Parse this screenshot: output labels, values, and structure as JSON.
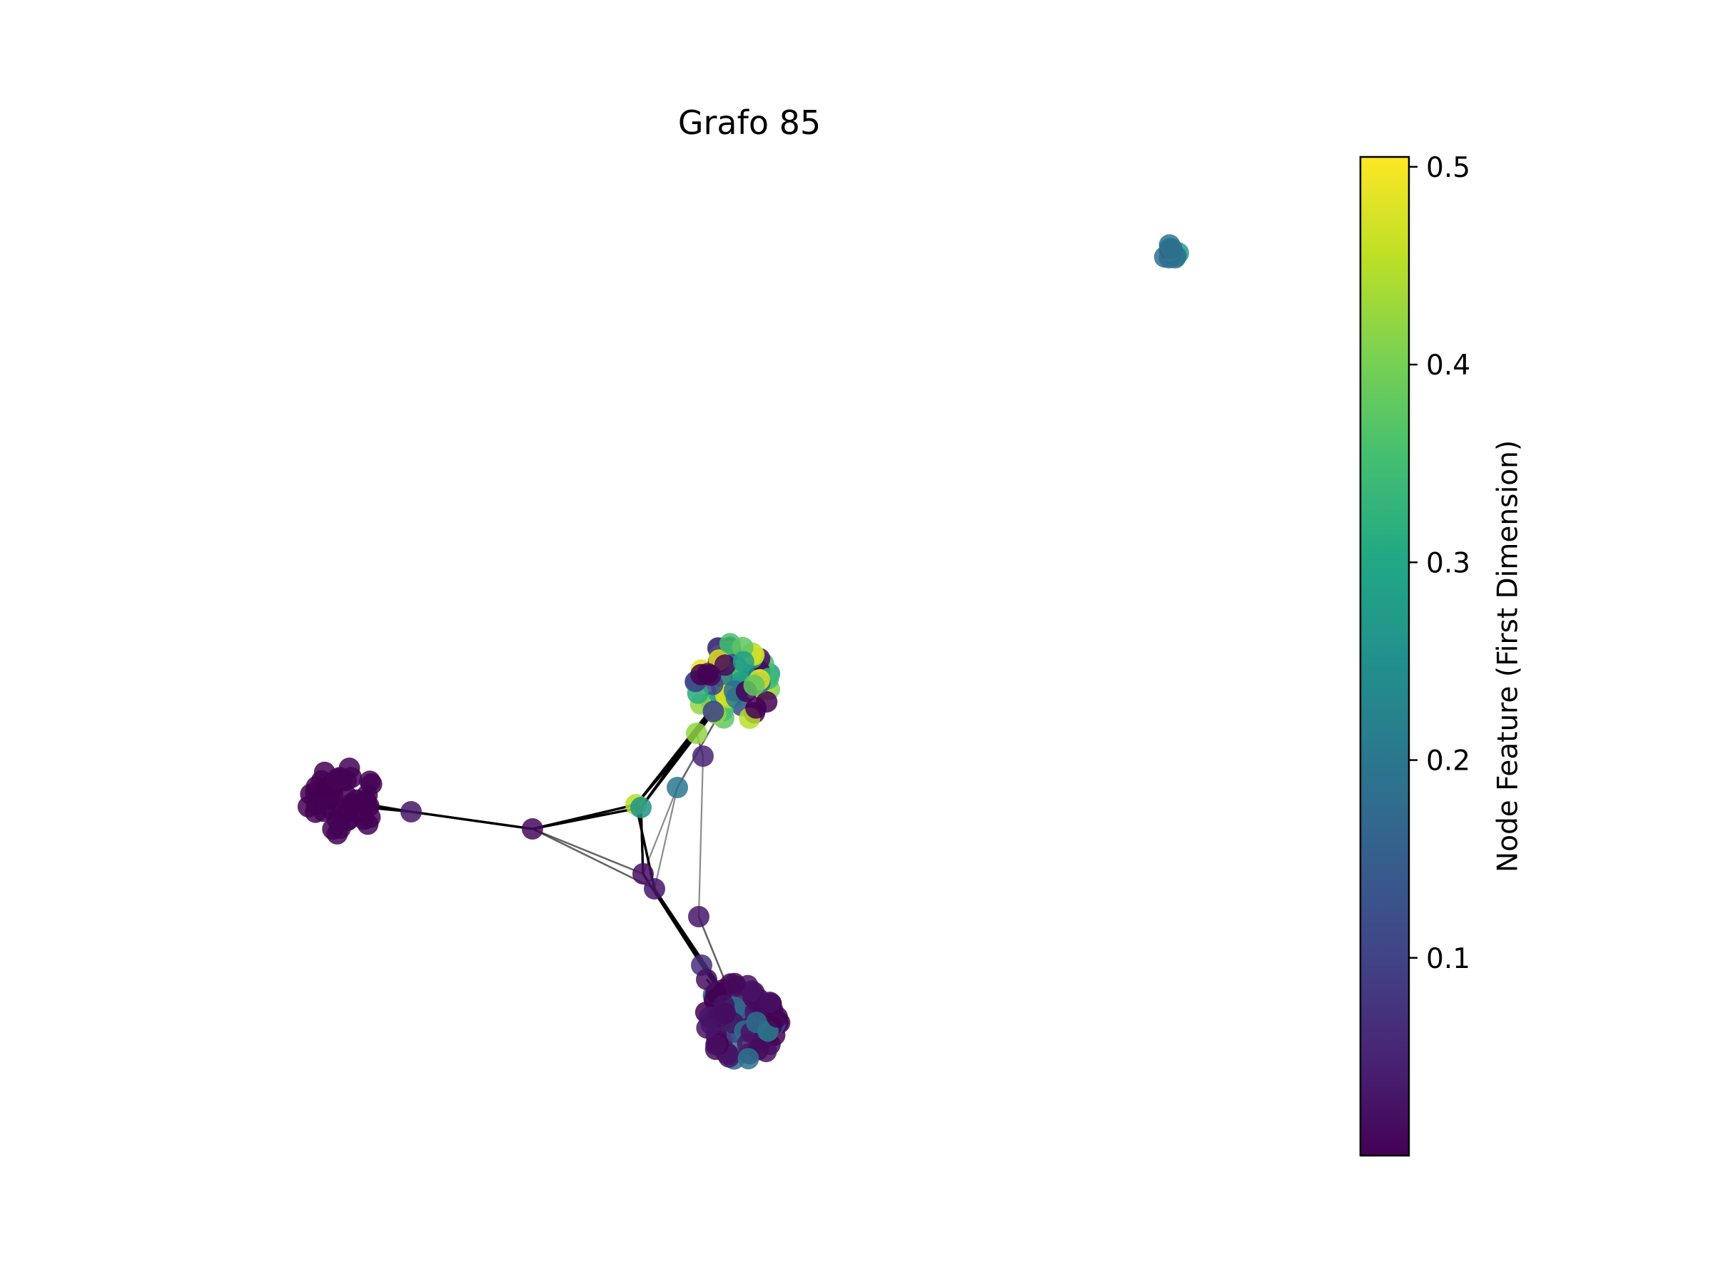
{
  "figure": {
    "title": "Grafo 85",
    "background": "#ffffff"
  },
  "colorbar": {
    "label": "Node Feature (First Dimension)",
    "colormap": "viridis",
    "min": 0.0,
    "max": 0.505,
    "ticks": [
      {
        "value": 0.1,
        "label": "0.1"
      },
      {
        "value": 0.2,
        "label": "0.2"
      },
      {
        "value": 0.3,
        "label": "0.3"
      },
      {
        "value": 0.4,
        "label": "0.4"
      },
      {
        "value": 0.5,
        "label": "0.5"
      }
    ]
  },
  "graph": {
    "edge_color": "#000000",
    "node_alpha": 0.85,
    "components": 2,
    "clusters": [
      {
        "id": "cluster-left",
        "feature_mean": 0.0,
        "feature_spread": 0.005,
        "node_count": 45
      },
      {
        "id": "cluster-top",
        "feature_mean": 0.22,
        "feature_spread": 0.28,
        "node_count": 75
      },
      {
        "id": "cluster-bottom",
        "feature_mean": 0.06,
        "feature_spread": 0.22,
        "node_count": 75
      },
      {
        "id": "cluster-small",
        "feature_mean": 0.2,
        "feature_spread": 0.09,
        "node_count": 10
      }
    ],
    "bridge_nodes": [
      {
        "id": "n1",
        "feature": 0.03
      },
      {
        "id": "n2",
        "feature": 0.01
      },
      {
        "id": "n3",
        "feature": 0.45
      },
      {
        "id": "n4",
        "feature": 0.26
      },
      {
        "id": "n5",
        "feature": 0.2
      },
      {
        "id": "n6",
        "feature": 0.42
      },
      {
        "id": "n7",
        "feature": 0.05
      },
      {
        "id": "n8",
        "feature": 0.02
      },
      {
        "id": "n9",
        "feature": 0.03
      },
      {
        "id": "n10",
        "feature": 0.03
      },
      {
        "id": "n11",
        "feature": 0.07
      },
      {
        "id": "n12",
        "feature": 0.02
      }
    ],
    "edges": [
      {
        "source": "cluster-left",
        "target": "n1",
        "weight": "strong"
      },
      {
        "source": "n1",
        "target": "n2",
        "weight": "strong"
      },
      {
        "source": "n2",
        "target": "n3",
        "weight": "strong"
      },
      {
        "source": "n2",
        "target": "n4",
        "weight": "strong"
      },
      {
        "source": "n2",
        "target": "n8",
        "weight": "medium"
      },
      {
        "source": "n2",
        "target": "n9",
        "weight": "medium"
      },
      {
        "source": "n3",
        "target": "n6",
        "weight": "strong"
      },
      {
        "source": "n4",
        "target": "n6",
        "weight": "strong"
      },
      {
        "source": "n3",
        "target": "cluster-top",
        "weight": "strong"
      },
      {
        "source": "n4",
        "target": "cluster-top",
        "weight": "strong"
      },
      {
        "source": "n6",
        "target": "cluster-top",
        "weight": "strong"
      },
      {
        "source": "n4",
        "target": "n8",
        "weight": "strong"
      },
      {
        "source": "n3",
        "target": "n9",
        "weight": "strong"
      },
      {
        "source": "n5",
        "target": "cluster-top",
        "weight": "medium"
      },
      {
        "source": "n5",
        "target": "n8",
        "weight": "light"
      },
      {
        "source": "n5",
        "target": "n9",
        "weight": "light"
      },
      {
        "source": "n7",
        "target": "n6",
        "weight": "medium"
      },
      {
        "source": "n7",
        "target": "n10",
        "weight": "light"
      },
      {
        "source": "n8",
        "target": "n11",
        "weight": "strong"
      },
      {
        "source": "n9",
        "target": "n11",
        "weight": "strong"
      },
      {
        "source": "n9",
        "target": "cluster-bottom",
        "weight": "strong"
      },
      {
        "source": "n10",
        "target": "cluster-bottom",
        "weight": "medium"
      },
      {
        "source": "n11",
        "target": "cluster-bottom",
        "weight": "strong"
      },
      {
        "source": "n12",
        "target": "cluster-bottom",
        "weight": "strong"
      },
      {
        "source": "n8",
        "target": "cluster-bottom",
        "weight": "light"
      }
    ]
  }
}
